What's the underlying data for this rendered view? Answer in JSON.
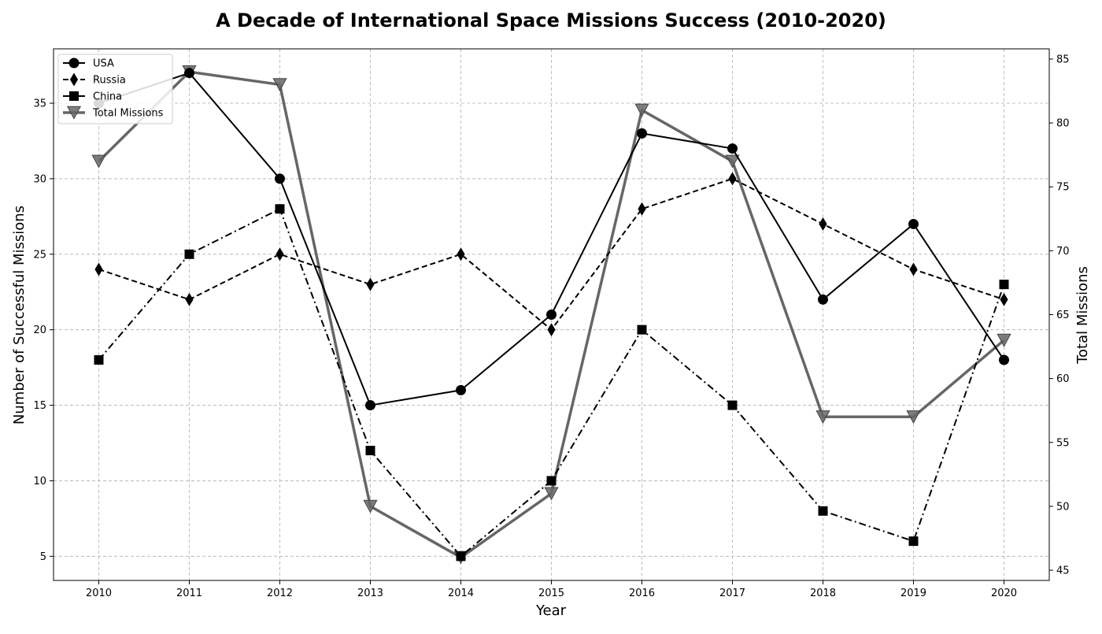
{
  "chart_data": {
    "type": "line",
    "title": "A Decade of International Space Missions Success (2010-2020)",
    "xlabel": "Year",
    "ylabel": "Number of Successful Missions",
    "ylabel_right": "Total Missions",
    "x": [
      2010,
      2011,
      2012,
      2013,
      2014,
      2015,
      2016,
      2017,
      2018,
      2019,
      2020
    ],
    "x_ticks": [
      "2010",
      "2011",
      "2012",
      "2013",
      "2014",
      "2015",
      "2016",
      "2017",
      "2018",
      "2019",
      "2020"
    ],
    "xlim": [
      2009.5,
      2020.5
    ],
    "ylim": [
      3.4,
      38.6
    ],
    "ylim_right": [
      44.2,
      85.8
    ],
    "y_ticks": [
      "5",
      "10",
      "15",
      "20",
      "25",
      "30",
      "35"
    ],
    "y_ticks_right": [
      "45",
      "50",
      "55",
      "60",
      "65",
      "70",
      "75",
      "80",
      "85"
    ],
    "grid": true,
    "legend_position": "top-left",
    "series": [
      {
        "name": "USA",
        "axis": "left",
        "marker": "circle",
        "dash": "solid",
        "color": "#000000",
        "values": [
          35,
          37,
          30,
          15,
          16,
          21,
          33,
          32,
          22,
          27,
          18
        ]
      },
      {
        "name": "Russia",
        "axis": "left",
        "marker": "diamond",
        "dash": "dashed",
        "color": "#000000",
        "values": [
          24,
          22,
          25,
          23,
          25,
          20,
          28,
          30,
          27,
          24,
          22
        ]
      },
      {
        "name": "China",
        "axis": "left",
        "marker": "square",
        "dash": "dashdot",
        "color": "#000000",
        "values": [
          18,
          25,
          28,
          12,
          5,
          10,
          20,
          15,
          8,
          6,
          23
        ]
      },
      {
        "name": "Total Missions",
        "axis": "right",
        "marker": "triangle-down",
        "dash": "solid",
        "color": "#666666",
        "values": [
          77,
          84,
          83,
          50,
          46,
          51,
          81,
          77,
          57,
          57,
          63
        ]
      }
    ]
  }
}
